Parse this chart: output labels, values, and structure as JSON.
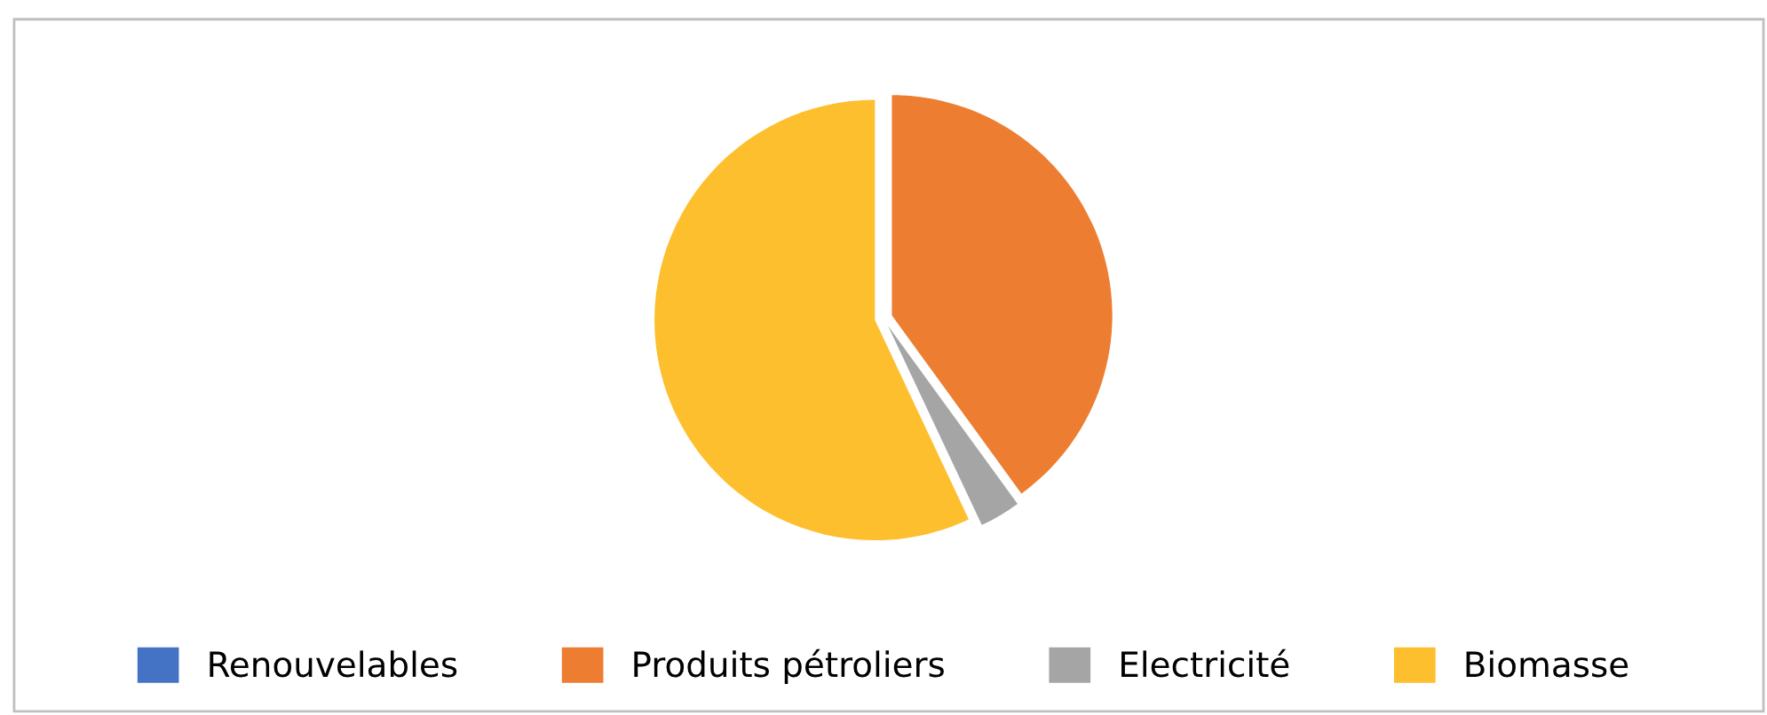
{
  "chart_data": {
    "type": "pie",
    "categories": [
      "Renouvelables",
      "Produits pétroliers",
      "Electricité",
      "Biomasse"
    ],
    "values": [
      0,
      40,
      3,
      57
    ],
    "colors": [
      "#4472c4",
      "#ed7d31",
      "#a5a5a5",
      "#fdbf2d"
    ],
    "legend": "bottom"
  }
}
